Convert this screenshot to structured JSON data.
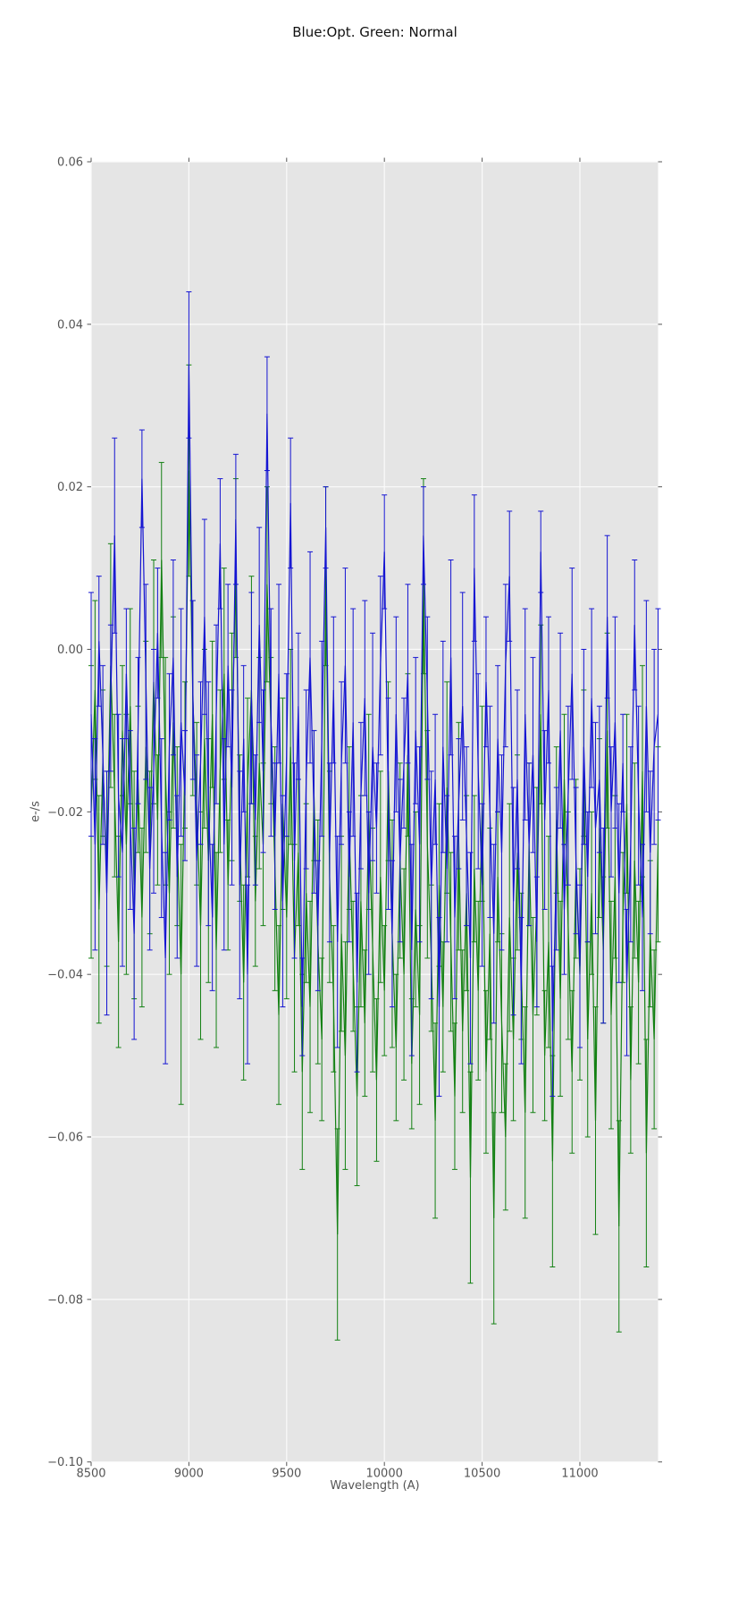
{
  "chart": {
    "title": "Blue:Opt. Green: Normal",
    "xlabel": "Wavelength (A)",
    "ylabel": "e-/s",
    "plot_background": "#e5e5e5",
    "grid_color": "#fbfbfb",
    "tick_color": "#555555",
    "tick_text_color": "#555555",
    "title_color": "#111111"
  },
  "chart_data": {
    "type": "line",
    "subtype": "errorbar",
    "title": "Blue:Opt. Green: Normal",
    "xlabel": "Wavelength (A)",
    "ylabel": "e-/s",
    "xlim": [
      8500,
      11400
    ],
    "ylim": [
      -0.1,
      0.06
    ],
    "grid": true,
    "legend_position": "none",
    "xticks": {
      "values": [
        8500,
        9000,
        9500,
        10000,
        10500,
        11000
      ],
      "labels": [
        "8500",
        "9000",
        "9500",
        "10000",
        "10500",
        "11000"
      ]
    },
    "yticks": {
      "values": [
        0.06,
        0.04,
        0.02,
        0.0,
        -0.02,
        -0.04,
        -0.06,
        -0.08,
        -0.1
      ],
      "labels": [
        "0.06",
        "0.04",
        "0.02",
        "0.00",
        "−0.02",
        "−0.04",
        "−0.06",
        "−0.08",
        "−0.10"
      ]
    },
    "x_start": 8500,
    "x_step": 20,
    "value_scale": 0.001,
    "series": [
      {
        "name": "Opt",
        "color": "#1414d2",
        "y_milli": [
          -8,
          -24,
          1,
          -13,
          -30,
          -6,
          14,
          -18,
          -25,
          -3,
          -21,
          -35,
          -10,
          21,
          -4,
          -27,
          -15,
          2,
          -22,
          -38,
          -12,
          -1,
          -28,
          -9,
          -18,
          35,
          -5,
          -26,
          -14,
          4,
          -19,
          -33,
          -8,
          13,
          -24,
          -2,
          -17,
          16,
          -29,
          -11,
          -40,
          -6,
          -21,
          3,
          -15,
          29,
          -9,
          -23,
          -3,
          -31,
          -13,
          18,
          -26,
          -7,
          -44,
          -16,
          -1,
          -20,
          -34,
          -11,
          15,
          -25,
          -5,
          -36,
          -14,
          -2,
          -28,
          -9,
          -41,
          -18,
          -6,
          -30,
          -12,
          -22,
          -2,
          12,
          -19,
          -35,
          -8,
          -26,
          -14,
          -3,
          -37,
          -10,
          -24,
          14,
          -6,
          -29,
          -16,
          -44,
          -12,
          -27,
          -1,
          -33,
          -19,
          -7,
          -23,
          -38,
          10,
          -15,
          -29,
          -4,
          -20,
          -35,
          -11,
          -25,
          -2,
          9,
          -31,
          -16,
          -42,
          -8,
          -24,
          -13,
          -36,
          12,
          -21,
          -5,
          -47,
          -27,
          -10,
          -32,
          -18,
          -3,
          -26,
          -39,
          -12,
          -28,
          -6,
          -22,
          -16,
          -34,
          4,
          -20,
          -9,
          -30,
          -14,
          -41,
          -24,
          3,
          -18,
          -33,
          -7,
          -25,
          -12,
          -8
        ],
        "err_milli": [
          15,
          13,
          8,
          11,
          15,
          9,
          12,
          10,
          14,
          8,
          11,
          13,
          9,
          6,
          12,
          10,
          15,
          8,
          11,
          13,
          9,
          12,
          10,
          14,
          8,
          9,
          11,
          13,
          10,
          12,
          15,
          9,
          11,
          8,
          13,
          10,
          12,
          8,
          14,
          9,
          11,
          13,
          8,
          12,
          10,
          7,
          14,
          9,
          11,
          13,
          10,
          8,
          12,
          9,
          6,
          11,
          13,
          10,
          8,
          12,
          5,
          11,
          9,
          13,
          10,
          12,
          8,
          14,
          11,
          9,
          12,
          10,
          14,
          8,
          11,
          7,
          13,
          9,
          12,
          10,
          8,
          11,
          13,
          9,
          12,
          6,
          10,
          14,
          8,
          11,
          13,
          9,
          12,
          10,
          8,
          14,
          11,
          13,
          9,
          12,
          10,
          8,
          13,
          11,
          9,
          12,
          10,
          8,
          14,
          11,
          9,
          13,
          10,
          12,
          8,
          5,
          11,
          9,
          8,
          10,
          12,
          8,
          11,
          13,
          9,
          10,
          12,
          8,
          11,
          13,
          9,
          12,
          10,
          8,
          13,
          11,
          6,
          9,
          12,
          8,
          11,
          9,
          13,
          10,
          12,
          13
        ]
      },
      {
        "name": "Normal",
        "color": "#128012",
        "y_milli": [
          -20,
          -5,
          -32,
          -14,
          -27,
          -2,
          -18,
          -36,
          -10,
          -24,
          -7,
          -29,
          -16,
          -33,
          -12,
          -25,
          -4,
          -21,
          11,
          -15,
          -30,
          -9,
          -23,
          -40,
          -13,
          22,
          -6,
          -19,
          -34,
          -11,
          -26,
          -8,
          -37,
          -15,
          -3,
          -29,
          -12,
          10,
          -22,
          -41,
          -17,
          -5,
          -31,
          -14,
          -24,
          8,
          -10,
          -27,
          -45,
          -19,
          -33,
          -12,
          -38,
          -25,
          -52,
          -30,
          -44,
          -18,
          -36,
          -48,
          9,
          -28,
          -43,
          -72,
          -35,
          -50,
          -22,
          -39,
          -55,
          -31,
          -46,
          -20,
          -37,
          -53,
          -28,
          -42,
          -15,
          -35,
          -49,
          -26,
          -40,
          -13,
          -51,
          -32,
          -45,
          9,
          -24,
          -38,
          -58,
          -29,
          -44,
          -17,
          -36,
          -55,
          -23,
          -47,
          -30,
          -65,
          -27,
          -42,
          -19,
          -52,
          -35,
          -70,
          -28,
          -46,
          -60,
          -33,
          -48,
          -25,
          -39,
          -57,
          -24,
          -45,
          -31,
          -8,
          -50,
          -36,
          -63,
          -21,
          -43,
          -16,
          -34,
          -52,
          -27,
          -40,
          -14,
          -48,
          -30,
          -58,
          -22,
          -37,
          -10,
          -45,
          -28,
          -71,
          -33,
          -19,
          -53,
          -26,
          -41,
          -15,
          -62,
          -35,
          -48,
          -24
        ],
        "err_milli": [
          18,
          11,
          14,
          9,
          12,
          15,
          10,
          13,
          8,
          16,
          12,
          14,
          9,
          11,
          13,
          10,
          15,
          8,
          12,
          14,
          10,
          13,
          11,
          16,
          9,
          13,
          12,
          10,
          14,
          11,
          15,
          9,
          12,
          10,
          13,
          8,
          14,
          11,
          9,
          12,
          11,
          14,
          8,
          13,
          10,
          12,
          9,
          15,
          11,
          13,
          10,
          12,
          14,
          9,
          12,
          11,
          13,
          8,
          15,
          10,
          11,
          13,
          9,
          13,
          12,
          14,
          10,
          8,
          11,
          13,
          9,
          12,
          15,
          10,
          13,
          8,
          11,
          14,
          9,
          12,
          13,
          10,
          8,
          12,
          11,
          12,
          14,
          9,
          12,
          10,
          8,
          13,
          11,
          9,
          14,
          10,
          12,
          13,
          9,
          11,
          12,
          10,
          13,
          13,
          8,
          11,
          9,
          14,
          10,
          12,
          9,
          13,
          10,
          12,
          14,
          11,
          8,
          13,
          13,
          9,
          12,
          8,
          14,
          10,
          11,
          13,
          9,
          12,
          10,
          14,
          11,
          9,
          12,
          14,
          10,
          13,
          8,
          11,
          9,
          12,
          10,
          13,
          14,
          9,
          11,
          12
        ]
      }
    ]
  }
}
